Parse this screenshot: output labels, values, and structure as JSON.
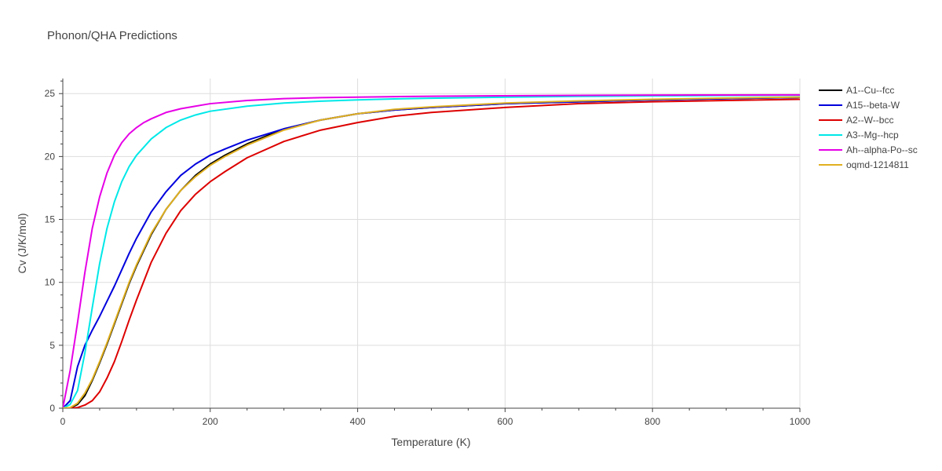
{
  "chart_data": {
    "type": "line",
    "title": "Phonon/QHA Predictions",
    "xlabel": "Temperature (K)",
    "ylabel": "Cv (J/K/mol)",
    "xlim": [
      0,
      1000
    ],
    "ylim": [
      0,
      26.2
    ],
    "x_ticks": [
      0,
      200,
      400,
      600,
      800,
      1000
    ],
    "y_ticks": [
      0,
      5,
      10,
      15,
      20,
      25
    ],
    "grid": true,
    "legend_position": "right",
    "series": [
      {
        "name": "A1--Cu--fcc",
        "color": "#000000",
        "x": [
          0,
          10,
          20,
          30,
          40,
          50,
          60,
          70,
          80,
          90,
          100,
          120,
          140,
          160,
          180,
          200,
          220,
          250,
          300,
          350,
          400,
          450,
          500,
          600,
          700,
          800,
          900,
          1000
        ],
        "y": [
          0,
          0.02,
          0.3,
          1.0,
          2.2,
          3.6,
          5.1,
          6.7,
          8.3,
          9.9,
          11.3,
          13.8,
          15.8,
          17.3,
          18.5,
          19.4,
          20.1,
          21.0,
          22.2,
          22.9,
          23.4,
          23.7,
          23.9,
          24.2,
          24.35,
          24.5,
          24.6,
          24.7
        ]
      },
      {
        "name": "A15--beta-W",
        "color": "#0000dd",
        "x": [
          0,
          10,
          20,
          30,
          40,
          50,
          60,
          70,
          80,
          90,
          100,
          120,
          140,
          160,
          180,
          200,
          220,
          250,
          300,
          350,
          400,
          450,
          500,
          600,
          700,
          800,
          900,
          1000
        ],
        "y": [
          0,
          0.6,
          3.3,
          5.0,
          6.2,
          7.3,
          8.5,
          9.7,
          11.0,
          12.3,
          13.5,
          15.6,
          17.2,
          18.5,
          19.4,
          20.1,
          20.6,
          21.3,
          22.2,
          22.9,
          23.4,
          23.7,
          23.9,
          24.2,
          24.35,
          24.5,
          24.6,
          24.7
        ]
      },
      {
        "name": "A2--W--bcc",
        "color": "#dd0000",
        "x": [
          0,
          10,
          20,
          30,
          40,
          50,
          60,
          70,
          80,
          90,
          100,
          120,
          140,
          160,
          180,
          200,
          220,
          250,
          300,
          350,
          400,
          450,
          500,
          600,
          700,
          800,
          900,
          1000
        ],
        "y": [
          0,
          0.0,
          0.05,
          0.25,
          0.6,
          1.3,
          2.4,
          3.7,
          5.3,
          7.0,
          8.6,
          11.6,
          13.9,
          15.7,
          17.0,
          18.0,
          18.8,
          19.9,
          21.2,
          22.1,
          22.7,
          23.2,
          23.5,
          23.9,
          24.2,
          24.35,
          24.45,
          24.55
        ]
      },
      {
        "name": "A3--Mg--hcp",
        "color": "#00e8e8",
        "x": [
          0,
          10,
          20,
          30,
          40,
          50,
          60,
          70,
          80,
          90,
          100,
          120,
          140,
          160,
          180,
          200,
          250,
          300,
          350,
          400,
          450,
          500,
          600,
          700,
          800,
          900,
          1000
        ],
        "y": [
          0,
          0.3,
          1.4,
          4.4,
          8.0,
          11.5,
          14.3,
          16.4,
          18.0,
          19.2,
          20.1,
          21.4,
          22.3,
          22.9,
          23.3,
          23.6,
          24.0,
          24.25,
          24.4,
          24.5,
          24.58,
          24.63,
          24.72,
          24.78,
          24.82,
          24.85,
          24.87
        ]
      },
      {
        "name": "Ah--alpha-Po--sc",
        "color": "#e600e6",
        "x": [
          0,
          10,
          20,
          30,
          40,
          50,
          60,
          70,
          80,
          90,
          100,
          110,
          120,
          140,
          160,
          180,
          200,
          250,
          300,
          350,
          400,
          450,
          500,
          600,
          700,
          800,
          900,
          1000
        ],
        "y": [
          0,
          3.0,
          6.8,
          10.8,
          14.3,
          16.8,
          18.7,
          20.1,
          21.1,
          21.8,
          22.3,
          22.7,
          23.0,
          23.5,
          23.8,
          24.0,
          24.2,
          24.45,
          24.6,
          24.68,
          24.72,
          24.76,
          24.79,
          24.83,
          24.86,
          24.88,
          24.89,
          24.9
        ]
      },
      {
        "name": "oqmd-1214811",
        "color": "#e0b020",
        "x": [
          0,
          10,
          20,
          30,
          40,
          50,
          60,
          70,
          80,
          90,
          100,
          120,
          140,
          160,
          180,
          200,
          220,
          250,
          300,
          350,
          400,
          450,
          500,
          600,
          700,
          800,
          900,
          1000
        ],
        "y": [
          0,
          0.05,
          0.4,
          1.2,
          2.3,
          3.7,
          5.2,
          6.8,
          8.4,
          10.0,
          11.4,
          13.9,
          15.8,
          17.3,
          18.4,
          19.3,
          20.0,
          20.9,
          22.1,
          22.9,
          23.4,
          23.75,
          23.95,
          24.25,
          24.42,
          24.55,
          24.65,
          24.72
        ]
      }
    ]
  }
}
